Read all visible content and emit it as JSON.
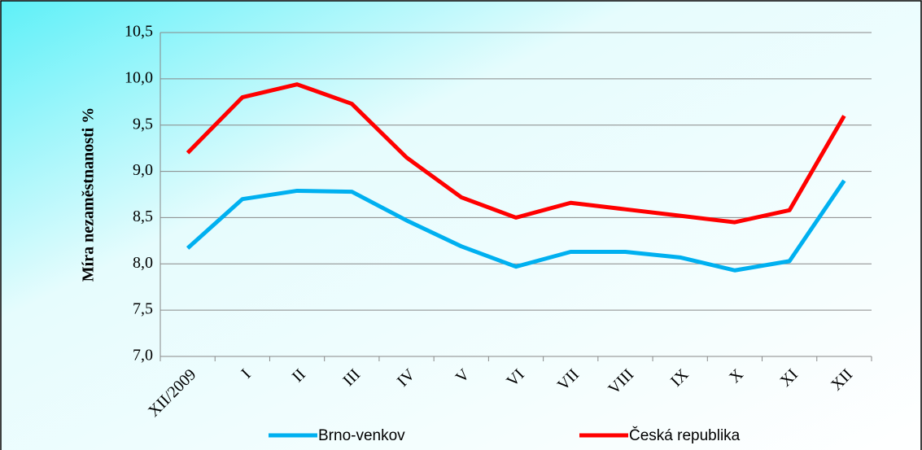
{
  "chart_data": {
    "type": "line",
    "y_label": "Míra nezaměstnanosti %",
    "categories": [
      "XII/2009",
      "I",
      "II",
      "III",
      "IV",
      "V",
      "VI",
      "VII",
      "VIII",
      "IX",
      "X",
      "XI",
      "XII"
    ],
    "series": [
      {
        "name": "Brno-venkov",
        "color": "#00b0f0",
        "values": [
          8.17,
          8.7,
          8.79,
          8.78,
          8.47,
          8.19,
          7.97,
          8.13,
          8.13,
          8.07,
          7.93,
          8.03,
          8.9
        ]
      },
      {
        "name": "Česká republika",
        "color": "#ff0000",
        "values": [
          9.2,
          9.8,
          9.94,
          9.73,
          9.15,
          8.72,
          8.5,
          8.66,
          8.59,
          8.52,
          8.45,
          8.58,
          9.6
        ]
      }
    ],
    "ylim": [
      7,
      10.5
    ],
    "yticks": [
      {
        "value": 7,
        "label": "7,0"
      },
      {
        "value": 7.5,
        "label": "7,5"
      },
      {
        "value": 8,
        "label": "8,0"
      },
      {
        "value": 8.5,
        "label": "8,5"
      },
      {
        "value": 9,
        "label": "9,0"
      },
      {
        "value": 9.5,
        "label": "9,5"
      },
      {
        "value": 10,
        "label": "10,0"
      },
      {
        "value": 10.5,
        "label": "10,5"
      }
    ],
    "grid": true,
    "legend": "bottom"
  }
}
